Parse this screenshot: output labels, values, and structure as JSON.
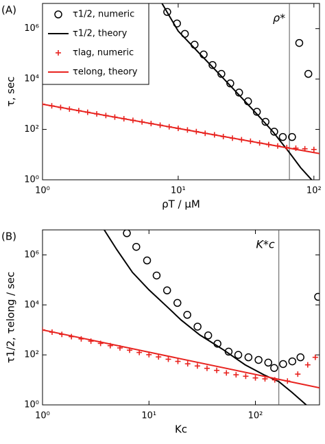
{
  "chart_data": [
    {
      "type": "line",
      "panel_label": "(A)",
      "xlabel": "ρT / μM",
      "ylabel": "τ, sec",
      "log_x": true,
      "log_y": true,
      "xlim": [
        1,
        110
      ],
      "ylim": [
        1,
        10000000
      ],
      "xticks": [
        {
          "value": 1,
          "label": "10⁰"
        },
        {
          "value": 10,
          "label": "10¹"
        },
        {
          "value": 100,
          "label": "10²"
        }
      ],
      "yticks": [
        {
          "value": 1,
          "label": "10⁰"
        },
        {
          "value": 100,
          "label": "10²"
        },
        {
          "value": 10000,
          "label": "10⁴"
        },
        {
          "value": 1000000,
          "label": "10⁶"
        }
      ],
      "vline": {
        "x": 66,
        "label": "ρ*"
      },
      "legend": "upper left",
      "series": [
        {
          "name": "τ1/2, numeric",
          "color": "#000000",
          "marker": "circle",
          "x": [
            8.3,
            9.8,
            11.2,
            13.2,
            15.4,
            17.9,
            20.8,
            24.2,
            28.1,
            32.7,
            38,
            44,
            51,
            59,
            69,
            78,
            91
          ],
          "values": [
            4600000,
            1600000,
            620000,
            230000,
            94000,
            36000,
            16000,
            6700,
            2900,
            1300,
            500,
            200,
            81,
            50,
            50,
            270000,
            16000
          ]
        },
        {
          "name": "τ1/2, theory",
          "color": "#000000",
          "marker": "none",
          "x": [
            7.6,
            10,
            15,
            20,
            30,
            40,
            50,
            66,
            80,
            100
          ],
          "values": [
            10000000,
            800000,
            80000,
            16000,
            1600,
            300,
            80,
            12,
            3,
            0.8
          ]
        },
        {
          "name": "τlag, numeric",
          "color": "#e8231f",
          "marker": "plus",
          "x": [
            1,
            1.17,
            1.36,
            1.58,
            1.85,
            2.15,
            2.51,
            2.93,
            3.41,
            3.98,
            4.64,
            5.41,
            6.31,
            7.36,
            8.58,
            10,
            11.7,
            13.6,
            15.8,
            18.5,
            21.5,
            25.1,
            29.3,
            34.1,
            39.8,
            46.4,
            54.1,
            63.1,
            73.6,
            85.8,
            100
          ],
          "values": [
            1000,
            863,
            745,
            643,
            555,
            479,
            413,
            356,
            308,
            265,
            229,
            198,
            171,
            147,
            127,
            110,
            95,
            82,
            70,
            61,
            52,
            45,
            39,
            34,
            29,
            25,
            22,
            19,
            18,
            17,
            16
          ]
        },
        {
          "name": "τelong, theory",
          "color": "#e8231f",
          "marker": "none",
          "x": [
            1,
            110
          ],
          "values": [
            1000,
            11
          ]
        }
      ]
    },
    {
      "type": "line",
      "panel_label": "(B)",
      "xlabel": "Kc",
      "ylabel": "τ1/2, τelong / sec",
      "log_x": true,
      "log_y": true,
      "xlim": [
        1,
        400
      ],
      "ylim": [
        1,
        10000000
      ],
      "xticks": [
        {
          "value": 1,
          "label": "10⁰"
        },
        {
          "value": 10,
          "label": "10¹"
        },
        {
          "value": 100,
          "label": "10²"
        }
      ],
      "yticks": [
        {
          "value": 1,
          "label": "10⁰"
        },
        {
          "value": 100,
          "label": "10²"
        },
        {
          "value": 10000,
          "label": "10⁴"
        },
        {
          "value": 1000000,
          "label": "10⁶"
        }
      ],
      "vline": {
        "x": 166,
        "label": "K*c"
      },
      "series": [
        {
          "name": "τ1/2, numeric",
          "color": "#000000",
          "marker": "circle",
          "x": [
            6.2,
            7.6,
            9.6,
            11.8,
            14.8,
            18.5,
            22.9,
            28.6,
            36,
            44,
            56,
            69,
            86,
            107,
            132,
            150,
            182,
            222,
            265,
            388
          ],
          "values": [
            7400000,
            2100000,
            600000,
            150000,
            38000,
            12000,
            4000,
            1350,
            600,
            280,
            135,
            100,
            80,
            63,
            49,
            30,
            43,
            55,
            80,
            21000
          ]
        },
        {
          "name": "τ1/2, theory",
          "color": "#000000",
          "marker": "none",
          "x": [
            3.8,
            5,
            7,
            10,
            15,
            20,
            30,
            50,
            80,
            120,
            166,
            220,
            300,
            400
          ],
          "values": [
            10000000,
            1600000,
            200000,
            40000,
            8000,
            2500,
            630,
            160,
            40,
            16,
            8.5,
            3.2,
            1,
            0.35
          ]
        },
        {
          "name": "τlag, numeric",
          "color": "#e8231f",
          "marker": "plus",
          "x": [
            1,
            1.23,
            1.52,
            1.87,
            2.31,
            2.85,
            3.51,
            4.33,
            5.34,
            6.58,
            8.11,
            10,
            12.3,
            15.2,
            18.7,
            23.1,
            28.5,
            35.1,
            43.3,
            53.4,
            65.8,
            81.1,
            100,
            123,
            152,
            200,
            250,
            310,
            365
          ],
          "values": [
            1000,
            812,
            660,
            536,
            436,
            354,
            288,
            234,
            190,
            154,
            125,
            102,
            83,
            67,
            55,
            44,
            36,
            29,
            24,
            19,
            16,
            14,
            12,
            11,
            10,
            9,
            17,
            40,
            80
          ]
        },
        {
          "name": "τelong, theory",
          "color": "#e8231f",
          "marker": "none",
          "x": [
            1,
            400
          ],
          "values": [
            1000,
            4.8
          ]
        }
      ]
    }
  ]
}
